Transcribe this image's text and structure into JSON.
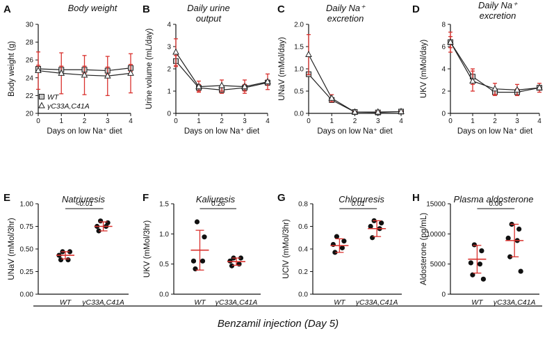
{
  "figure": {
    "footer": "Benzamil injection (Day 5)",
    "colors": {
      "axis": "#111111",
      "error": "#d9302c",
      "marker_fill": "#c8c8c8",
      "dot": "#111111",
      "line": "#222222"
    }
  },
  "chart_data": [
    {
      "id": "A",
      "type": "line",
      "title": "Body weight",
      "xlabel": "Days on low Na⁺ diet",
      "ylabel": "Body weight (g)",
      "x": [
        0,
        1,
        2,
        3,
        4
      ],
      "xticks": [
        "0",
        "1",
        "2",
        "3",
        "4"
      ],
      "ylim": [
        20,
        30
      ],
      "yticks": [
        "20",
        "22",
        "24",
        "26",
        "28",
        "30"
      ],
      "legend": [
        "WT",
        "γC33A,C41A"
      ],
      "series": [
        {
          "name": "WT",
          "marker": "square",
          "values": [
            25.0,
            24.9,
            24.9,
            24.8,
            25.1
          ],
          "err": [
            0.4,
            0.4,
            0.4,
            0.4,
            0.4
          ]
        },
        {
          "name": "γC33A,C41A",
          "marker": "triangle",
          "values": [
            24.8,
            24.5,
            24.3,
            24.2,
            24.5
          ],
          "err": [
            2.1,
            2.3,
            2.2,
            2.2,
            2.2
          ]
        }
      ]
    },
    {
      "id": "B",
      "type": "line",
      "title": "Daily urine output",
      "xlabel": "Days on low Na⁺ diet",
      "ylabel": "Urine volume (mL/day)",
      "x": [
        0,
        1,
        2,
        3,
        4
      ],
      "xticks": [
        "0",
        "1",
        "2",
        "3",
        "4"
      ],
      "ylim": [
        0,
        4
      ],
      "yticks": [
        "0",
        "1",
        "2",
        "3",
        "4"
      ],
      "series": [
        {
          "name": "WT",
          "marker": "square",
          "values": [
            2.35,
            1.15,
            1.05,
            1.15,
            1.38
          ],
          "err": [
            0.25,
            0.15,
            0.15,
            0.15,
            0.12
          ]
        },
        {
          "name": "γC33A,C41A",
          "marker": "triangle",
          "values": [
            2.75,
            1.2,
            1.25,
            1.2,
            1.42
          ],
          "err": [
            0.6,
            0.25,
            0.25,
            0.3,
            0.35
          ]
        }
      ]
    },
    {
      "id": "C",
      "type": "line",
      "title": "Daily Na⁺ excretion",
      "xlabel": "Days on low Na⁺ diet",
      "ylabel": "UNaV (mMol/day)",
      "x": [
        0,
        1,
        2,
        3,
        4
      ],
      "xticks": [
        "0",
        "1",
        "2",
        "3",
        "4"
      ],
      "ylim": [
        0,
        2
      ],
      "yticks": [
        "0.0",
        "0.5",
        "1.0",
        "1.5",
        "2.0"
      ],
      "series": [
        {
          "name": "WT",
          "marker": "square",
          "values": [
            0.88,
            0.3,
            0.03,
            0.02,
            0.04
          ],
          "err": [
            0.05,
            0.05,
            0.01,
            0.01,
            0.01
          ]
        },
        {
          "name": "γC33A,C41A",
          "marker": "triangle",
          "values": [
            1.32,
            0.34,
            0.03,
            0.03,
            0.04
          ],
          "err": [
            0.45,
            0.08,
            0.01,
            0.01,
            0.01
          ]
        }
      ]
    },
    {
      "id": "D",
      "type": "line",
      "title": "Daily Na⁺ excretion",
      "xlabel": "Days on low Na⁺ diet",
      "ylabel": "UKV (mMol/day)",
      "x": [
        0,
        1,
        2,
        3,
        4
      ],
      "xticks": [
        "0",
        "1",
        "2",
        "3",
        "4"
      ],
      "ylim": [
        0,
        8
      ],
      "yticks": [
        "0",
        "2",
        "4",
        "6",
        "8"
      ],
      "series": [
        {
          "name": "WT",
          "marker": "square",
          "values": [
            6.4,
            3.3,
            1.9,
            1.9,
            2.3
          ],
          "err": [
            0.5,
            0.7,
            0.3,
            0.3,
            0.2
          ]
        },
        {
          "name": "γC33A,C41A",
          "marker": "triangle",
          "values": [
            6.4,
            2.9,
            2.2,
            2.1,
            2.3
          ],
          "err": [
            0.9,
            0.9,
            0.5,
            0.5,
            0.4
          ]
        }
      ]
    },
    {
      "id": "E",
      "type": "scatter",
      "title": "Natriuresis",
      "ylabel": "UNaV (mMol/3hr)",
      "categories": [
        "WT",
        "γC33A,C41A"
      ],
      "ylim": [
        0,
        1
      ],
      "yticks": [
        "0.00",
        "0.25",
        "0.50",
        "0.75",
        "1.00"
      ],
      "groups": [
        {
          "name": "WT",
          "points": [
            0.47,
            0.47,
            0.43,
            0.38,
            0.38
          ],
          "mean": 0.43,
          "sd": 0.04
        },
        {
          "name": "γC33A,C41A",
          "points": [
            0.81,
            0.79,
            0.75,
            0.75,
            0.7
          ],
          "mean": 0.75,
          "sd": 0.05
        }
      ],
      "pvalue": "<0.01",
      "pvalue_italic": true
    },
    {
      "id": "F",
      "type": "scatter",
      "title": "Kaliuresis",
      "ylabel": "UKV (mMol/3hr)",
      "categories": [
        "WT",
        "γC33A,C41A"
      ],
      "ylim": [
        0,
        1.5
      ],
      "yticks": [
        "0.0",
        "0.5",
        "1.0",
        "1.5"
      ],
      "groups": [
        {
          "name": "WT",
          "points": [
            1.2,
            0.95,
            0.55,
            0.55,
            0.42
          ],
          "mean": 0.73,
          "sd": 0.33
        },
        {
          "name": "γC33A,C41A",
          "points": [
            0.6,
            0.6,
            0.55,
            0.5,
            0.47
          ],
          "mean": 0.54,
          "sd": 0.06
        }
      ],
      "pvalue": "0.26",
      "pvalue_italic": false
    },
    {
      "id": "G",
      "type": "scatter",
      "title": "Chloruresis",
      "ylabel": "UClV (mMol/3hr)",
      "categories": [
        "WT",
        "γC33A,C41A"
      ],
      "ylim": [
        0,
        0.8
      ],
      "yticks": [
        "0.0",
        "0.2",
        "0.4",
        "0.6",
        "0.8"
      ],
      "groups": [
        {
          "name": "WT",
          "points": [
            0.51,
            0.47,
            0.44,
            0.41,
            0.37
          ],
          "mean": 0.43,
          "sd": 0.06
        },
        {
          "name": "γC33A,C41A",
          "points": [
            0.65,
            0.63,
            0.6,
            0.58,
            0.5
          ],
          "mean": 0.58,
          "sd": 0.07
        }
      ],
      "pvalue": "0.01",
      "pvalue_italic": true
    },
    {
      "id": "H",
      "type": "scatter",
      "title": "Plasma aldosterone",
      "ylabel": "Aldosterone (pg/mL)",
      "categories": [
        "WT",
        "γC33A,C41A"
      ],
      "ylim": [
        0,
        15000
      ],
      "yticks": [
        "0",
        "5000",
        "10000",
        "15000"
      ],
      "groups": [
        {
          "name": "WT",
          "points": [
            8200,
            7200,
            5200,
            5000,
            3200,
            2500
          ],
          "mean": 5800,
          "sd": 2300
        },
        {
          "name": "γC33A,C41A",
          "points": [
            11600,
            10800,
            9300,
            8900,
            6200,
            3800
          ],
          "mean": 8900,
          "sd": 2700
        }
      ],
      "pvalue": "0.06",
      "pvalue_italic": false
    }
  ]
}
